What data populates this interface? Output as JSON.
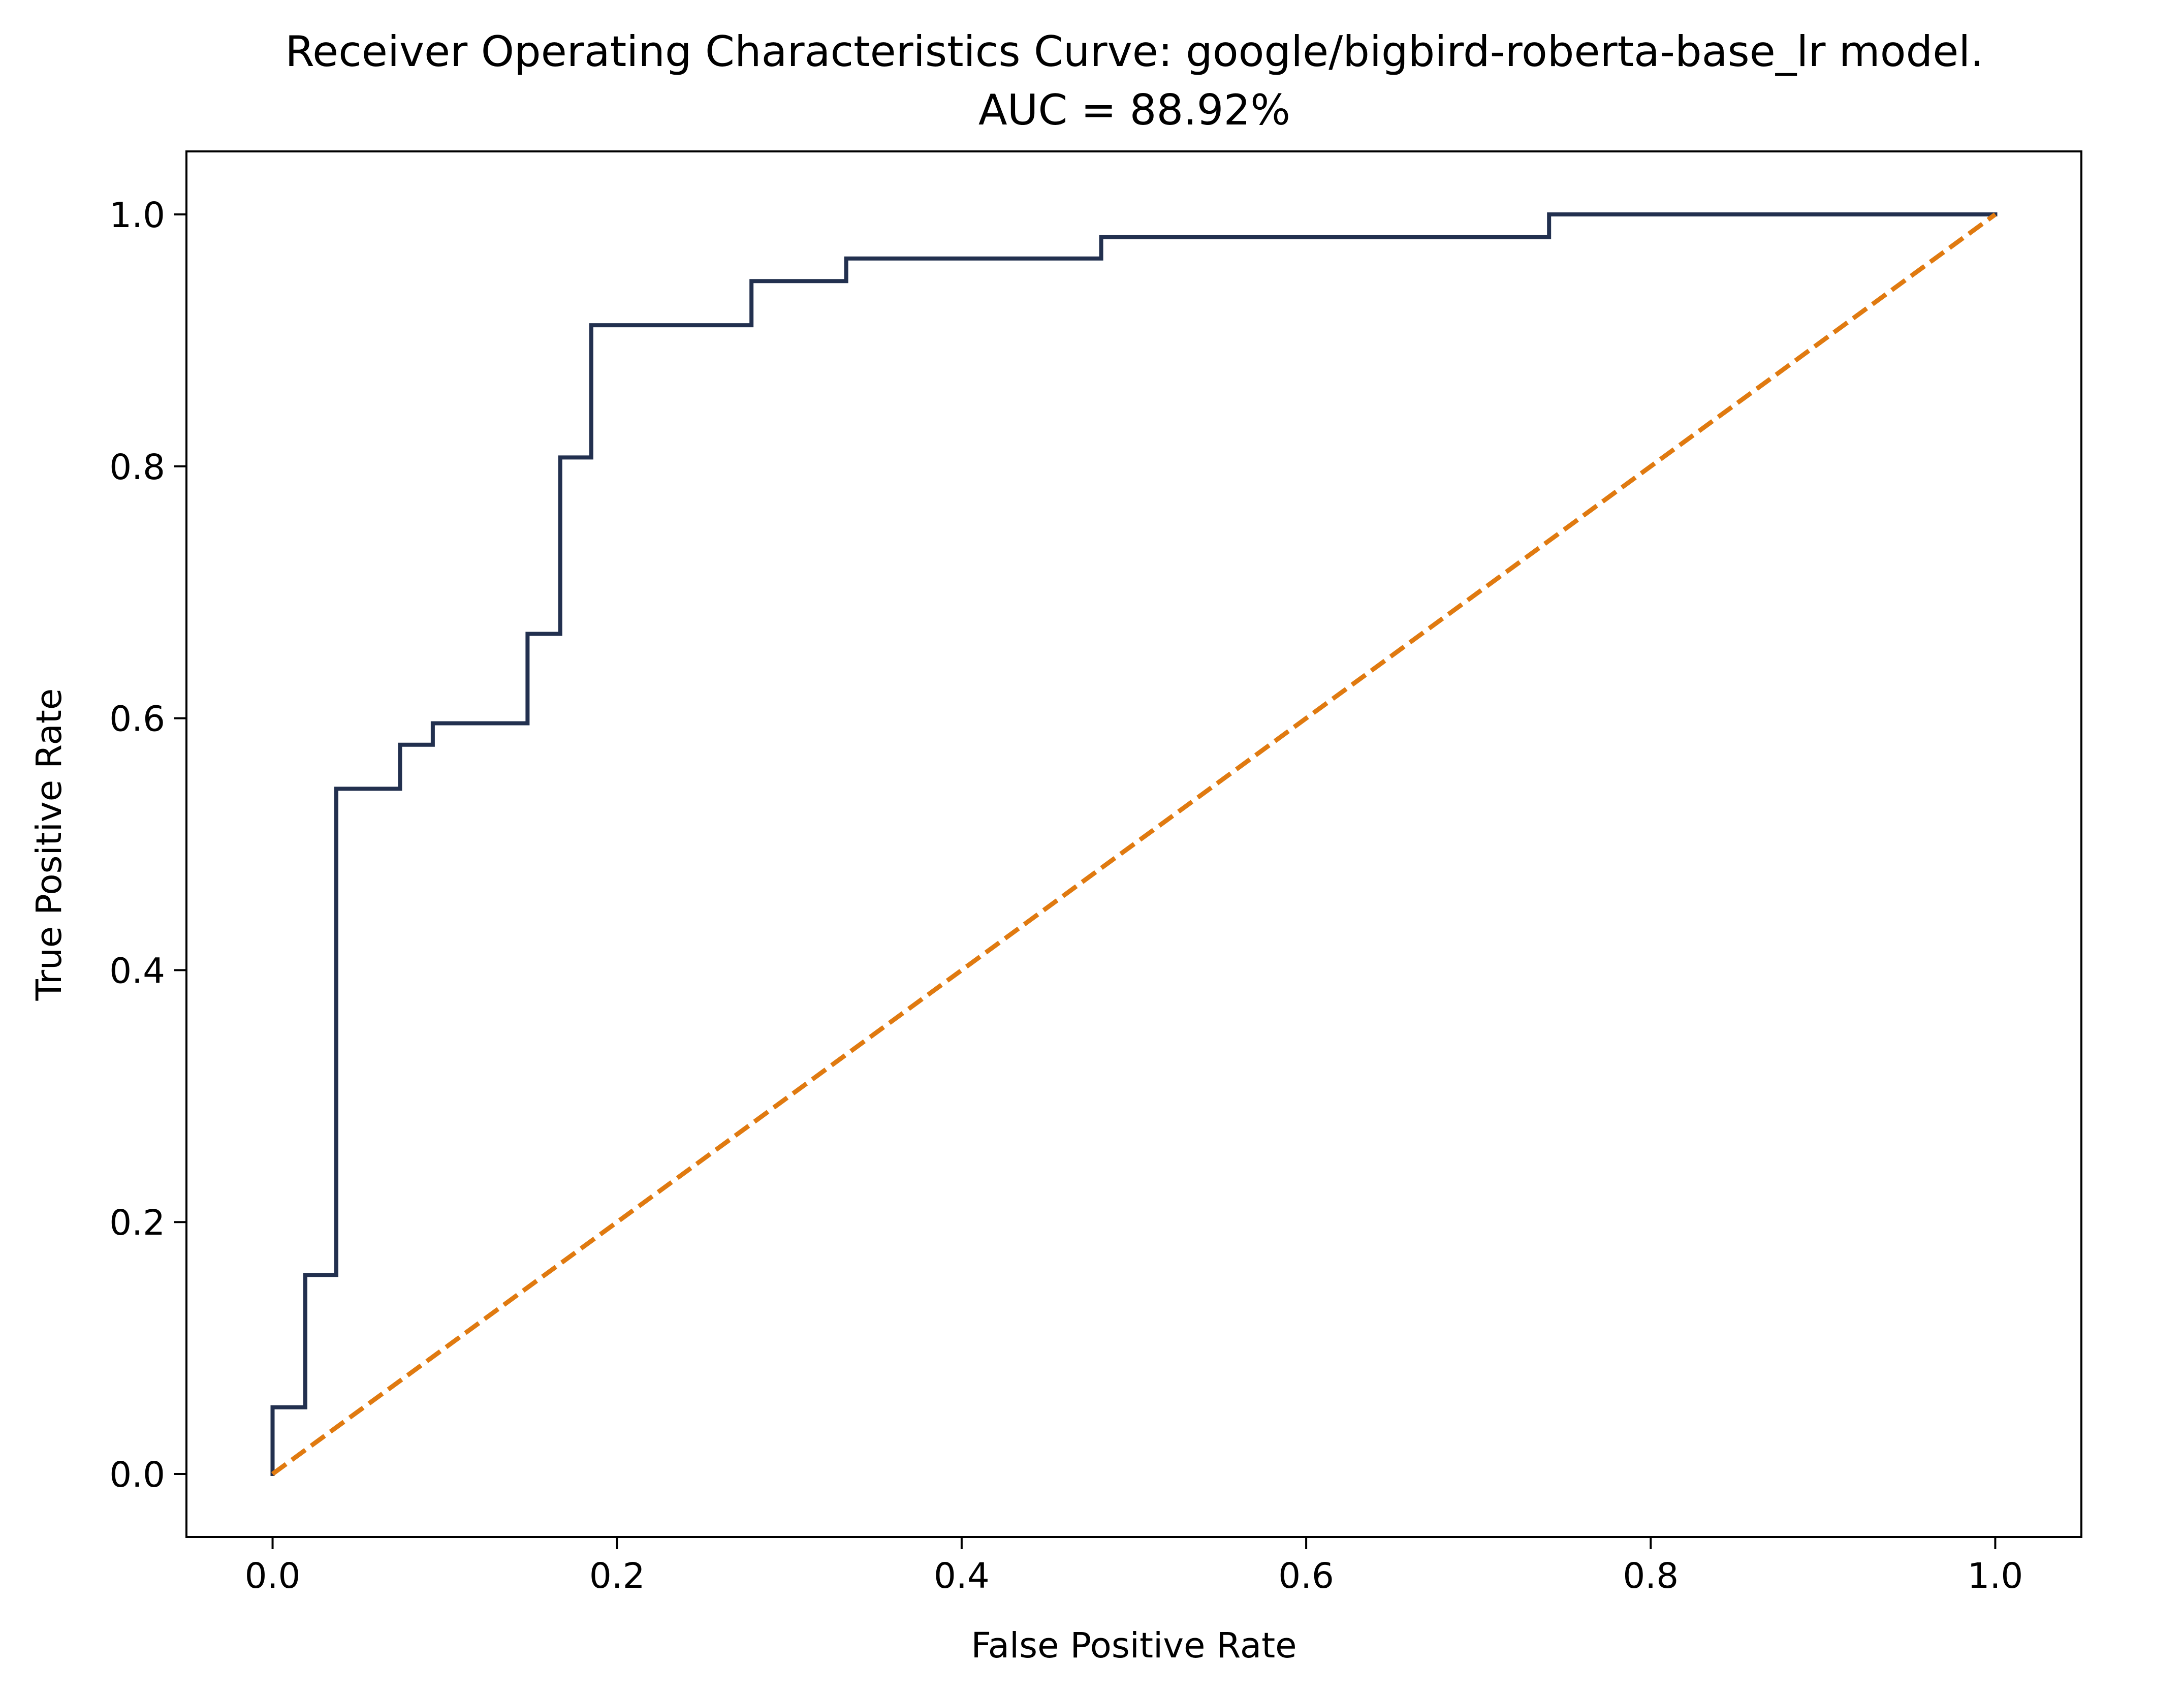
{
  "chart_data": {
    "type": "line",
    "title": "Receiver Operating Characteristics Curve: google/bigbird-roberta-base_lr model.",
    "subtitle": "AUC = 88.92%",
    "xlabel": "False Positive Rate",
    "ylabel": "True Positive Rate",
    "xlim": [
      -0.05,
      1.05
    ],
    "ylim": [
      -0.05,
      1.05
    ],
    "xticks": [
      0.0,
      0.2,
      0.4,
      0.6,
      0.8,
      1.0
    ],
    "yticks": [
      0.0,
      0.2,
      0.4,
      0.6,
      0.8,
      1.0
    ],
    "xtick_labels": [
      "0.0",
      "0.2",
      "0.4",
      "0.6",
      "0.8",
      "1.0"
    ],
    "ytick_labels": [
      "0.0",
      "0.2",
      "0.4",
      "0.6",
      "0.8",
      "1.0"
    ],
    "grid": false,
    "series": [
      {
        "color": "#22304f",
        "style": "solid",
        "x": [
          0.0,
          0.0,
          0.019,
          0.019,
          0.037,
          0.037,
          0.074,
          0.074,
          0.093,
          0.093,
          0.148,
          0.148,
          0.167,
          0.167,
          0.185,
          0.185,
          0.278,
          0.278,
          0.333,
          0.333,
          0.481,
          0.481,
          0.741,
          0.741,
          1.0
        ],
        "y": [
          0.0,
          0.053,
          0.053,
          0.158,
          0.158,
          0.544,
          0.544,
          0.579,
          0.579,
          0.596,
          0.596,
          0.667,
          0.667,
          0.807,
          0.807,
          0.912,
          0.912,
          0.947,
          0.947,
          0.965,
          0.965,
          0.982,
          0.982,
          1.0,
          1.0
        ]
      },
      {
        "color": "#e07a10",
        "style": "dashed",
        "x": [
          0.0,
          1.0
        ],
        "y": [
          0.0,
          1.0
        ]
      }
    ]
  }
}
